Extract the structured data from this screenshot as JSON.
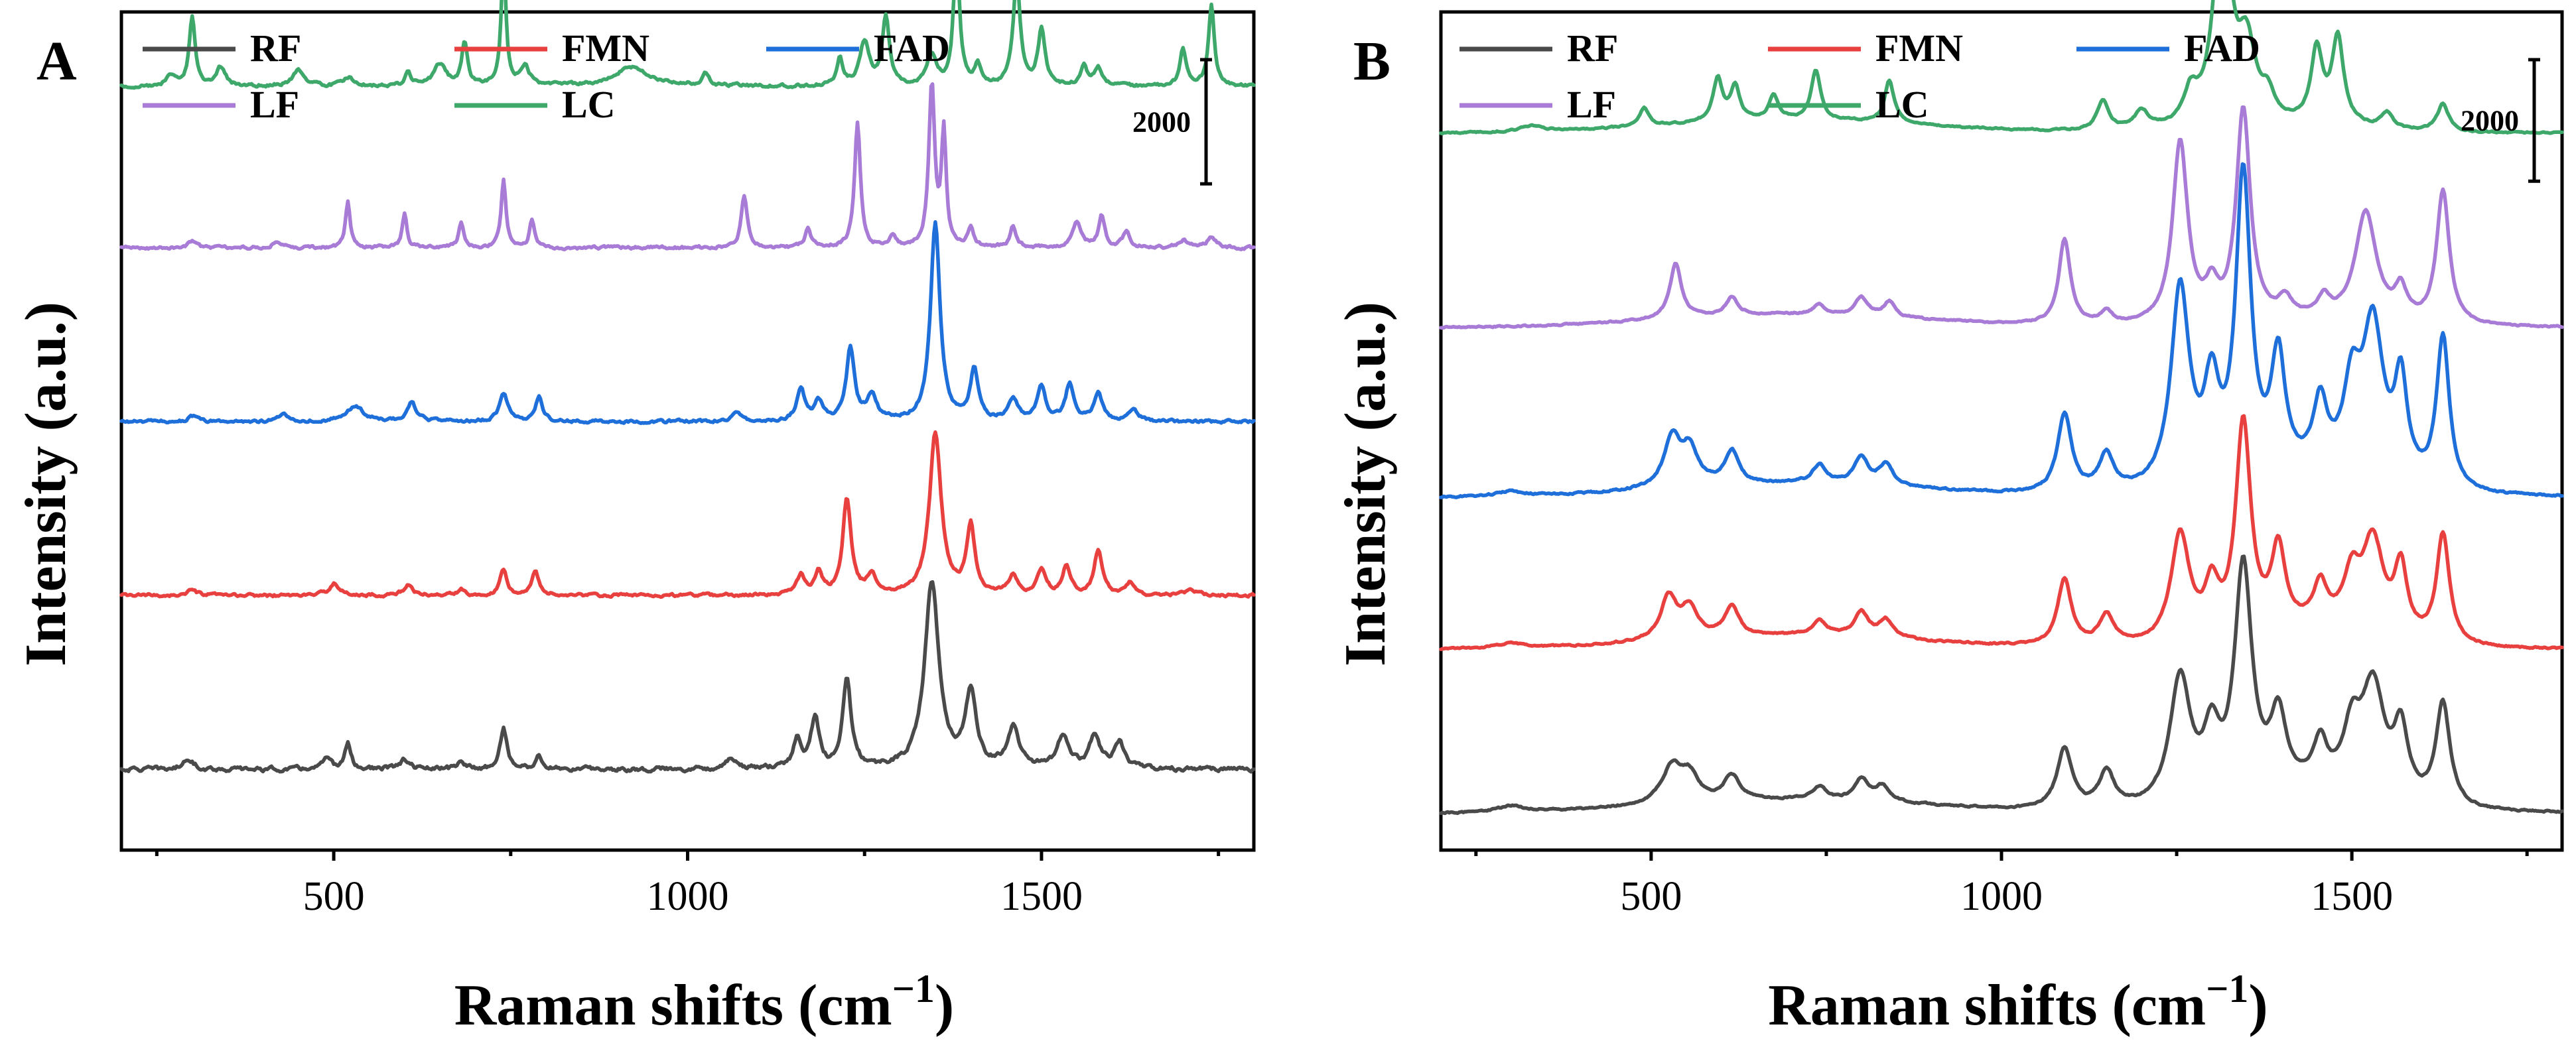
{
  "figure": {
    "x_axis_label": "Raman shifts (cm",
    "x_axis_label_sup": "−1",
    "x_axis_label_close": ")",
    "y_axis_label": "Intensity (a.u.)"
  },
  "colors": {
    "RF": "#4a4a4a",
    "FMN": "#e8403f",
    "FAD": "#1e6fd9",
    "LF": "#a77bd6",
    "LC": "#3ea86a"
  },
  "chart_data": [
    {
      "type": "line",
      "panel_label": "A",
      "xlabel": "Raman shifts (cm−1)",
      "ylabel": "Intensity (a.u.)",
      "xlim": [
        200,
        1800
      ],
      "ylim": [
        -500,
        13000
      ],
      "x_ticks": [
        500,
        1000,
        1500
      ],
      "x_tick_labels": [
        "500",
        "1000",
        "1500"
      ],
      "scale_bar": {
        "label": "2000",
        "value": 2000
      },
      "legend": [
        "RF",
        "FMN",
        "FAD",
        "LF",
        "LC"
      ],
      "legend_position": "top-left",
      "series": [
        {
          "name": "RF",
          "offset": 800,
          "noise": 55,
          "peaks": [
            [
              295,
              180,
              8
            ],
            [
              490,
              150,
              8
            ],
            [
              520,
              420,
              5
            ],
            [
              600,
              150,
              8
            ],
            [
              680,
              150,
              5
            ],
            [
              740,
              650,
              6
            ],
            [
              790,
              200,
              6
            ],
            [
              1060,
              150,
              10
            ],
            [
              1155,
              450,
              7
            ],
            [
              1180,
              800,
              7
            ],
            [
              1225,
              1450,
              7
            ],
            [
              1345,
              3000,
              12
            ],
            [
              1400,
              1200,
              9
            ],
            [
              1460,
              650,
              10
            ],
            [
              1530,
              500,
              10
            ],
            [
              1575,
              520,
              9
            ],
            [
              1610,
              400,
              9
            ]
          ]
        },
        {
          "name": "FMN",
          "offset": 3600,
          "noise": 38,
          "peaks": [
            [
              300,
              80,
              8
            ],
            [
              500,
              200,
              8
            ],
            [
              605,
              160,
              8
            ],
            [
              680,
              100,
              6
            ],
            [
              740,
              420,
              6
            ],
            [
              785,
              380,
              6
            ],
            [
              1160,
              300,
              7
            ],
            [
              1185,
              350,
              7
            ],
            [
              1225,
              1550,
              7
            ],
            [
              1260,
              300,
              8
            ],
            [
              1350,
              2600,
              10
            ],
            [
              1400,
              1100,
              7
            ],
            [
              1460,
              320,
              7
            ],
            [
              1500,
              400,
              7
            ],
            [
              1535,
              450,
              7
            ],
            [
              1580,
              700,
              7
            ],
            [
              1625,
              200,
              7
            ],
            [
              1710,
              100,
              8
            ]
          ]
        },
        {
          "name": "FAD",
          "offset": 6400,
          "noise": 38,
          "peaks": [
            [
              300,
              80,
              8
            ],
            [
              430,
              120,
              8
            ],
            [
              530,
              250,
              14
            ],
            [
              610,
              300,
              8
            ],
            [
              740,
              450,
              7
            ],
            [
              790,
              400,
              6
            ],
            [
              1070,
              150,
              8
            ],
            [
              1160,
              500,
              7
            ],
            [
              1185,
              300,
              7
            ],
            [
              1230,
              1150,
              7
            ],
            [
              1260,
              400,
              8
            ],
            [
              1350,
              3200,
              8
            ],
            [
              1405,
              800,
              7
            ],
            [
              1460,
              350,
              8
            ],
            [
              1500,
              550,
              7
            ],
            [
              1540,
              600,
              7
            ],
            [
              1580,
              450,
              7
            ],
            [
              1630,
              200,
              7
            ]
          ]
        },
        {
          "name": "LF",
          "offset": 9200,
          "noise": 38,
          "peaks": [
            [
              300,
              100,
              8
            ],
            [
              420,
              100,
              8
            ],
            [
              520,
              750,
              4
            ],
            [
              600,
              550,
              4
            ],
            [
              680,
              400,
              4
            ],
            [
              740,
              1100,
              4
            ],
            [
              780,
              450,
              4
            ],
            [
              1080,
              850,
              5
            ],
            [
              1170,
              300,
              5
            ],
            [
              1240,
              2000,
              5
            ],
            [
              1290,
              200,
              5
            ],
            [
              1345,
              2600,
              5
            ],
            [
              1362,
              1800,
              4
            ],
            [
              1400,
              300,
              5
            ],
            [
              1460,
              350,
              5
            ],
            [
              1550,
              400,
              8
            ],
            [
              1585,
              500,
              5
            ],
            [
              1620,
              250,
              6
            ],
            [
              1700,
              120,
              8
            ],
            [
              1740,
              150,
              8
            ]
          ]
        },
        {
          "name": "LC",
          "offset": 11800,
          "noise": 40,
          "peaks": [
            [
              270,
              150,
              8
            ],
            [
              300,
              1100,
              5
            ],
            [
              340,
              300,
              8
            ],
            [
              450,
              250,
              10
            ],
            [
              520,
              150,
              8
            ],
            [
              605,
              200,
              5
            ],
            [
              650,
              350,
              10
            ],
            [
              685,
              700,
              5
            ],
            [
              740,
              2000,
              4
            ],
            [
              770,
              300,
              8
            ],
            [
              920,
              300,
              30
            ],
            [
              1025,
              200,
              6
            ],
            [
              1215,
              450,
              5
            ],
            [
              1250,
              700,
              8
            ],
            [
              1280,
              1100,
              6
            ],
            [
              1345,
              500,
              8
            ],
            [
              1380,
              2200,
              5
            ],
            [
              1410,
              300,
              6
            ],
            [
              1465,
              1700,
              6
            ],
            [
              1500,
              900,
              6
            ],
            [
              1560,
              300,
              6
            ],
            [
              1580,
              300,
              6
            ],
            [
              1700,
              600,
              5
            ],
            [
              1740,
              1300,
              5
            ]
          ]
        }
      ]
    },
    {
      "type": "line",
      "panel_label": "B",
      "xlabel": "Raman shifts (cm−1)",
      "ylabel": "Intensity (a.u.)",
      "xlim": [
        200,
        1800
      ],
      "ylim": [
        -300,
        13500
      ],
      "x_ticks": [
        500,
        1000,
        1500
      ],
      "x_tick_labels": [
        "500",
        "1000",
        "1500"
      ],
      "scale_bar": {
        "label": "2000",
        "value": 2000
      },
      "legend": [
        "RF",
        "FMN",
        "FAD",
        "LF",
        "LC"
      ],
      "legend_position": "top-left",
      "series": [
        {
          "name": "RF",
          "offset": 300,
          "noise": 22,
          "peaks": [
            [
              300,
              100,
              25
            ],
            [
              530,
              600,
              18
            ],
            [
              555,
              400,
              15
            ],
            [
              615,
              400,
              14
            ],
            [
              740,
              200,
              12
            ],
            [
              800,
              350,
              12
            ],
            [
              830,
              250,
              12
            ],
            [
              1090,
              1000,
              13
            ],
            [
              1150,
              600,
              13
            ],
            [
              1255,
              2100,
              18
            ],
            [
              1300,
              1000,
              14
            ],
            [
              1345,
              3800,
              15
            ],
            [
              1395,
              1200,
              14
            ],
            [
              1455,
              700,
              12
            ],
            [
              1500,
              900,
              14
            ],
            [
              1530,
              1800,
              20
            ],
            [
              1570,
              1100,
              12
            ],
            [
              1630,
              1700,
              12
            ]
          ]
        },
        {
          "name": "FMN",
          "offset": 3000,
          "noise": 22,
          "peaks": [
            [
              300,
              80,
              25
            ],
            [
              525,
              700,
              14
            ],
            [
              555,
              500,
              14
            ],
            [
              615,
              500,
              12
            ],
            [
              740,
              250,
              12
            ],
            [
              800,
              400,
              12
            ],
            [
              835,
              300,
              12
            ],
            [
              1090,
              1100,
              12
            ],
            [
              1150,
              500,
              13
            ],
            [
              1255,
              1800,
              16
            ],
            [
              1300,
              800,
              12
            ],
            [
              1345,
              3500,
              13
            ],
            [
              1395,
              1300,
              12
            ],
            [
              1455,
              650,
              12
            ],
            [
              1500,
              800,
              14
            ],
            [
              1530,
              1500,
              18
            ],
            [
              1570,
              1100,
              11
            ],
            [
              1630,
              1800,
              11
            ]
          ]
        },
        {
          "name": "FAD",
          "offset": 5500,
          "noise": 24,
          "peaks": [
            [
              300,
              80,
              25
            ],
            [
              530,
              800,
              14
            ],
            [
              555,
              600,
              14
            ],
            [
              615,
              550,
              12
            ],
            [
              740,
              300,
              12
            ],
            [
              800,
              450,
              12
            ],
            [
              835,
              350,
              12
            ],
            [
              1090,
              1300,
              12
            ],
            [
              1150,
              600,
              13
            ],
            [
              1255,
              3300,
              16
            ],
            [
              1300,
              1500,
              13
            ],
            [
              1345,
              5000,
              13
            ],
            [
              1395,
              1900,
              12
            ],
            [
              1455,
              1100,
              12
            ],
            [
              1500,
              1300,
              14
            ],
            [
              1530,
              2500,
              18
            ],
            [
              1570,
              1600,
              11
            ],
            [
              1630,
              2500,
              11
            ]
          ]
        },
        {
          "name": "LF",
          "offset": 8300,
          "noise": 20,
          "peaks": [
            [
              535,
              900,
              10
            ],
            [
              615,
              300,
              10
            ],
            [
              740,
              150,
              10
            ],
            [
              800,
              300,
              10
            ],
            [
              840,
              250,
              10
            ],
            [
              1090,
              1400,
              10
            ],
            [
              1150,
              200,
              10
            ],
            [
              1255,
              3000,
              13
            ],
            [
              1300,
              500,
              10
            ],
            [
              1345,
              3500,
              12
            ],
            [
              1405,
              300,
              12
            ],
            [
              1460,
              300,
              10
            ],
            [
              1520,
              1800,
              18
            ],
            [
              1570,
              500,
              10
            ],
            [
              1630,
              2200,
              11
            ]
          ]
        },
        {
          "name": "LC",
          "offset": 11500,
          "noise": 20,
          "peaks": [
            [
              330,
              100,
              20
            ],
            [
              490,
              300,
              8
            ],
            [
              595,
              700,
              8
            ],
            [
              620,
              550,
              8
            ],
            [
              675,
              400,
              8
            ],
            [
              735,
              800,
              8
            ],
            [
              840,
              700,
              8
            ],
            [
              1145,
              500,
              10
            ],
            [
              1200,
              300,
              12
            ],
            [
              1270,
              500,
              12
            ],
            [
              1315,
              3500,
              15
            ],
            [
              1350,
              1200,
              15
            ],
            [
              1380,
              400,
              12
            ],
            [
              1450,
              1200,
              10
            ],
            [
              1480,
              1400,
              10
            ],
            [
              1550,
              250,
              10
            ],
            [
              1630,
              450,
              10
            ]
          ]
        }
      ]
    }
  ]
}
